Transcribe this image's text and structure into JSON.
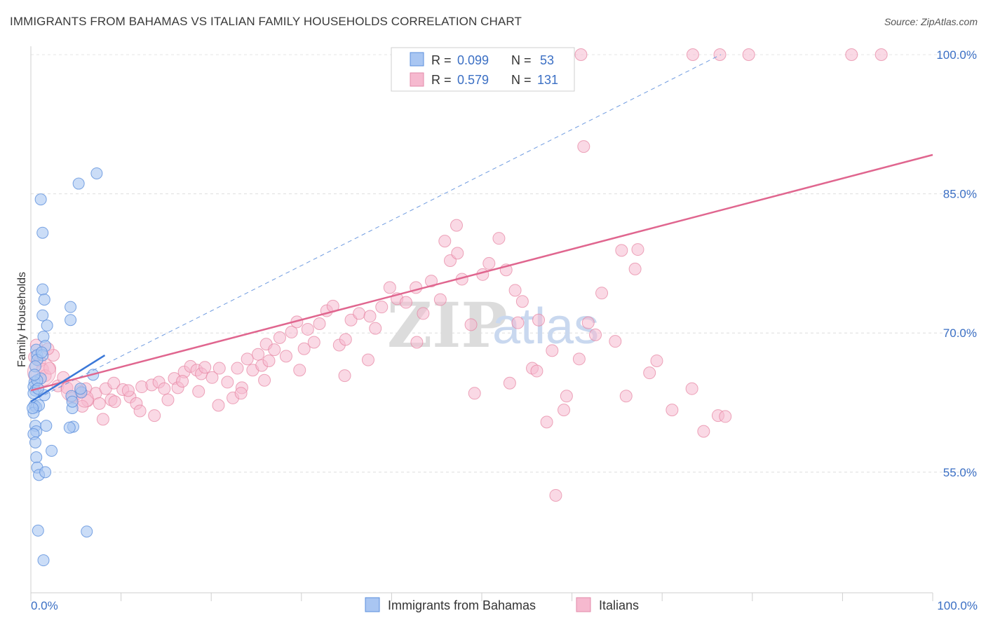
{
  "title": "IMMIGRANTS FROM BAHAMAS VS ITALIAN FAMILY HOUSEHOLDS CORRELATION CHART",
  "source": "Source: ZipAtlas.com",
  "watermark": {
    "zip": "ZIP",
    "atlas": "atlas"
  },
  "colors": {
    "blue": "#3b78d8",
    "blue_fill": "#a9c6f2",
    "pink": "#e0668f",
    "pink_fill": "#f6b9cf",
    "tick": "#3b6fc4"
  },
  "legend": {
    "r_label": "R =",
    "n_label": "N =",
    "series": [
      {
        "r": "0.099",
        "n": "53"
      },
      {
        "r": "0.579",
        "n": "131"
      }
    ]
  },
  "bottom_legend": [
    "Immigrants from Bahamas",
    "Italians"
  ],
  "chart_data": {
    "type": "scatter",
    "title": "IMMIGRANTS FROM BAHAMAS VS ITALIAN FAMILY HOUSEHOLDS CORRELATION CHART",
    "xlabel": "",
    "ylabel": "Family Households",
    "xlim": [
      0,
      100
    ],
    "ylim": [
      42,
      100
    ],
    "x_tick_labels": [
      "0.0%",
      "100.0%"
    ],
    "y_ticks": [
      55,
      70,
      85,
      100
    ],
    "y_tick_labels": [
      "55.0%",
      "70.0%",
      "85.0%",
      "100.0%"
    ],
    "grid": true,
    "series": [
      {
        "name": "Immigrants from Bahamas",
        "r": 0.099,
        "n": 53,
        "trend": {
          "x": [
            0,
            8.2
          ],
          "y": [
            62.6,
            67.6
          ]
        },
        "ref_line": {
          "x": [
            0,
            76.5
          ],
          "y": [
            62.6,
            100
          ]
        },
        "points": [
          {
            "x": 1.1,
            "y": 84.4
          },
          {
            "x": 5.3,
            "y": 86.1
          },
          {
            "x": 7.3,
            "y": 87.2
          },
          {
            "x": 1.3,
            "y": 80.8
          },
          {
            "x": 1.3,
            "y": 74.7
          },
          {
            "x": 1.5,
            "y": 73.6
          },
          {
            "x": 1.3,
            "y": 71.9
          },
          {
            "x": 4.4,
            "y": 71.4
          },
          {
            "x": 4.4,
            "y": 72.8
          },
          {
            "x": 1.8,
            "y": 70.8
          },
          {
            "x": 1.4,
            "y": 69.6
          },
          {
            "x": 1.6,
            "y": 68.6
          },
          {
            "x": 0.6,
            "y": 68.2
          },
          {
            "x": 0.7,
            "y": 67.6
          },
          {
            "x": 1.3,
            "y": 67.6
          },
          {
            "x": 0.7,
            "y": 67.1
          },
          {
            "x": 0.5,
            "y": 66.4
          },
          {
            "x": 1.1,
            "y": 65.1
          },
          {
            "x": 0.4,
            "y": 64.7
          },
          {
            "x": 0.3,
            "y": 64.2
          },
          {
            "x": 0.5,
            "y": 63.8
          },
          {
            "x": 0.3,
            "y": 63.5
          },
          {
            "x": 0.4,
            "y": 62.2
          },
          {
            "x": 0.6,
            "y": 62.0
          },
          {
            "x": 0.3,
            "y": 61.4
          },
          {
            "x": 0.5,
            "y": 60.0
          },
          {
            "x": 0.6,
            "y": 59.4
          },
          {
            "x": 0.3,
            "y": 59.1
          },
          {
            "x": 0.5,
            "y": 58.2
          },
          {
            "x": 0.6,
            "y": 56.6
          },
          {
            "x": 0.7,
            "y": 55.5
          },
          {
            "x": 0.9,
            "y": 54.7
          },
          {
            "x": 1.6,
            "y": 55.0
          },
          {
            "x": 2.3,
            "y": 57.3
          },
          {
            "x": 4.7,
            "y": 59.9
          },
          {
            "x": 4.3,
            "y": 59.8
          },
          {
            "x": 4.5,
            "y": 63.2
          },
          {
            "x": 4.6,
            "y": 61.9
          },
          {
            "x": 5.6,
            "y": 63.6
          },
          {
            "x": 6.9,
            "y": 65.5
          },
          {
            "x": 4.6,
            "y": 62.6
          },
          {
            "x": 5.5,
            "y": 64.0
          },
          {
            "x": 0.8,
            "y": 48.7
          },
          {
            "x": 1.4,
            "y": 45.5
          },
          {
            "x": 6.2,
            "y": 48.6
          },
          {
            "x": 0.7,
            "y": 64.9
          },
          {
            "x": 1.5,
            "y": 63.3
          },
          {
            "x": 0.9,
            "y": 62.2
          },
          {
            "x": 1.7,
            "y": 60.0
          },
          {
            "x": 0.4,
            "y": 65.5
          },
          {
            "x": 0.2,
            "y": 61.9
          },
          {
            "x": 0.8,
            "y": 64.0
          },
          {
            "x": 1.2,
            "y": 67.9
          }
        ]
      },
      {
        "name": "Italians",
        "r": 0.579,
        "n": 131,
        "trend": {
          "x": [
            0,
            100
          ],
          "y": [
            63.8,
            89.2
          ]
        },
        "points": [
          {
            "x": 0.4,
            "y": 67.4
          },
          {
            "x": 0.6,
            "y": 68.7
          },
          {
            "x": 1.0,
            "y": 67.0
          },
          {
            "x": 1.3,
            "y": 66.1
          },
          {
            "x": 1.6,
            "y": 65.4
          },
          {
            "x": 2.1,
            "y": 66.2
          },
          {
            "x": 3.0,
            "y": 64.3
          },
          {
            "x": 4.0,
            "y": 64.1
          },
          {
            "x": 4.6,
            "y": 63.0
          },
          {
            "x": 5.5,
            "y": 63.7
          },
          {
            "x": 6.1,
            "y": 64.0
          },
          {
            "x": 6.3,
            "y": 62.7
          },
          {
            "x": 7.2,
            "y": 63.5
          },
          {
            "x": 8.3,
            "y": 64.0
          },
          {
            "x": 8.9,
            "y": 62.8
          },
          {
            "x": 9.3,
            "y": 62.6
          },
          {
            "x": 9.2,
            "y": 64.6
          },
          {
            "x": 10.2,
            "y": 63.9
          },
          {
            "x": 11.0,
            "y": 63.1
          },
          {
            "x": 11.7,
            "y": 62.4
          },
          {
            "x": 12.1,
            "y": 61.6
          },
          {
            "x": 12.3,
            "y": 64.2
          },
          {
            "x": 13.4,
            "y": 64.4
          },
          {
            "x": 14.2,
            "y": 64.7
          },
          {
            "x": 14.8,
            "y": 64.0
          },
          {
            "x": 15.2,
            "y": 62.8
          },
          {
            "x": 15.9,
            "y": 65.1
          },
          {
            "x": 16.3,
            "y": 64.1
          },
          {
            "x": 17.0,
            "y": 65.8
          },
          {
            "x": 17.7,
            "y": 66.4
          },
          {
            "x": 18.4,
            "y": 66.0
          },
          {
            "x": 18.9,
            "y": 65.6
          },
          {
            "x": 19.3,
            "y": 66.3
          },
          {
            "x": 20.1,
            "y": 65.2
          },
          {
            "x": 20.9,
            "y": 66.2
          },
          {
            "x": 21.8,
            "y": 64.7
          },
          {
            "x": 22.4,
            "y": 63.0
          },
          {
            "x": 22.9,
            "y": 66.2
          },
          {
            "x": 23.4,
            "y": 64.1
          },
          {
            "x": 24.0,
            "y": 67.2
          },
          {
            "x": 24.6,
            "y": 66.0
          },
          {
            "x": 25.2,
            "y": 67.7
          },
          {
            "x": 25.6,
            "y": 66.5
          },
          {
            "x": 26.1,
            "y": 68.8
          },
          {
            "x": 26.4,
            "y": 67.0
          },
          {
            "x": 27.0,
            "y": 68.2
          },
          {
            "x": 27.6,
            "y": 69.5
          },
          {
            "x": 28.3,
            "y": 67.5
          },
          {
            "x": 28.9,
            "y": 70.1
          },
          {
            "x": 29.5,
            "y": 71.2
          },
          {
            "x": 30.3,
            "y": 68.3
          },
          {
            "x": 30.7,
            "y": 70.4
          },
          {
            "x": 31.4,
            "y": 69.0
          },
          {
            "x": 32.0,
            "y": 71.0
          },
          {
            "x": 32.8,
            "y": 72.4
          },
          {
            "x": 33.5,
            "y": 72.9
          },
          {
            "x": 34.2,
            "y": 68.7
          },
          {
            "x": 34.9,
            "y": 69.3
          },
          {
            "x": 35.5,
            "y": 71.4
          },
          {
            "x": 36.4,
            "y": 72.1
          },
          {
            "x": 37.6,
            "y": 71.8
          },
          {
            "x": 38.2,
            "y": 70.5
          },
          {
            "x": 38.9,
            "y": 72.8
          },
          {
            "x": 39.8,
            "y": 74.9
          },
          {
            "x": 40.6,
            "y": 73.7
          },
          {
            "x": 41.6,
            "y": 73.3
          },
          {
            "x": 42.7,
            "y": 74.9
          },
          {
            "x": 43.5,
            "y": 72.1
          },
          {
            "x": 44.4,
            "y": 75.6
          },
          {
            "x": 45.4,
            "y": 73.6
          },
          {
            "x": 45.9,
            "y": 79.9
          },
          {
            "x": 46.5,
            "y": 77.8
          },
          {
            "x": 47.2,
            "y": 81.6
          },
          {
            "x": 47.8,
            "y": 75.8
          },
          {
            "x": 48.8,
            "y": 70.9
          },
          {
            "x": 49.2,
            "y": 63.5
          },
          {
            "x": 50.1,
            "y": 76.3
          },
          {
            "x": 50.8,
            "y": 77.5
          },
          {
            "x": 51.9,
            "y": 80.2
          },
          {
            "x": 52.7,
            "y": 76.8
          },
          {
            "x": 53.1,
            "y": 64.6
          },
          {
            "x": 54.0,
            "y": 71.1
          },
          {
            "x": 54.5,
            "y": 73.4
          },
          {
            "x": 55.6,
            "y": 66.2
          },
          {
            "x": 56.1,
            "y": 65.9
          },
          {
            "x": 57.2,
            "y": 60.4
          },
          {
            "x": 58.2,
            "y": 52.5
          },
          {
            "x": 59.4,
            "y": 63.2
          },
          {
            "x": 60.8,
            "y": 67.2
          },
          {
            "x": 61.8,
            "y": 71.1
          },
          {
            "x": 62.6,
            "y": 69.8
          },
          {
            "x": 63.3,
            "y": 74.3
          },
          {
            "x": 64.8,
            "y": 69.1
          },
          {
            "x": 66.0,
            "y": 63.2
          },
          {
            "x": 67.0,
            "y": 76.9
          },
          {
            "x": 67.3,
            "y": 79.0
          },
          {
            "x": 65.5,
            "y": 78.9
          },
          {
            "x": 68.6,
            "y": 65.7
          },
          {
            "x": 69.4,
            "y": 67.0
          },
          {
            "x": 71.1,
            "y": 61.7
          },
          {
            "x": 73.3,
            "y": 64.0
          },
          {
            "x": 74.6,
            "y": 59.4
          },
          {
            "x": 76.2,
            "y": 61.1
          },
          {
            "x": 77.0,
            "y": 61.0
          },
          {
            "x": 57.8,
            "y": 68.1
          },
          {
            "x": 59.1,
            "y": 61.7
          },
          {
            "x": 56.3,
            "y": 71.4
          },
          {
            "x": 53.7,
            "y": 74.6
          },
          {
            "x": 47.3,
            "y": 78.6
          },
          {
            "x": 42.8,
            "y": 69.0
          },
          {
            "x": 37.4,
            "y": 67.1
          },
          {
            "x": 34.8,
            "y": 65.4
          },
          {
            "x": 29.8,
            "y": 66.0
          },
          {
            "x": 25.9,
            "y": 64.9
          },
          {
            "x": 23.3,
            "y": 63.5
          },
          {
            "x": 20.8,
            "y": 62.2
          },
          {
            "x": 18.6,
            "y": 63.7
          },
          {
            "x": 16.8,
            "y": 64.8
          },
          {
            "x": 13.7,
            "y": 61.1
          },
          {
            "x": 10.8,
            "y": 63.8
          },
          {
            "x": 7.6,
            "y": 62.4
          },
          {
            "x": 5.7,
            "y": 62.1
          },
          {
            "x": 2.5,
            "y": 67.6
          },
          {
            "x": 1.9,
            "y": 68.3
          },
          {
            "x": 3.6,
            "y": 65.2
          },
          {
            "x": 8.0,
            "y": 60.7
          },
          {
            "x": 61.3,
            "y": 90.1
          },
          {
            "x": 61.0,
            "y": 100.0
          },
          {
            "x": 73.4,
            "y": 100.0
          },
          {
            "x": 76.4,
            "y": 100.0
          },
          {
            "x": 79.6,
            "y": 100.0
          },
          {
            "x": 91.0,
            "y": 100.0
          },
          {
            "x": 94.3,
            "y": 100.0
          }
        ]
      }
    ]
  }
}
